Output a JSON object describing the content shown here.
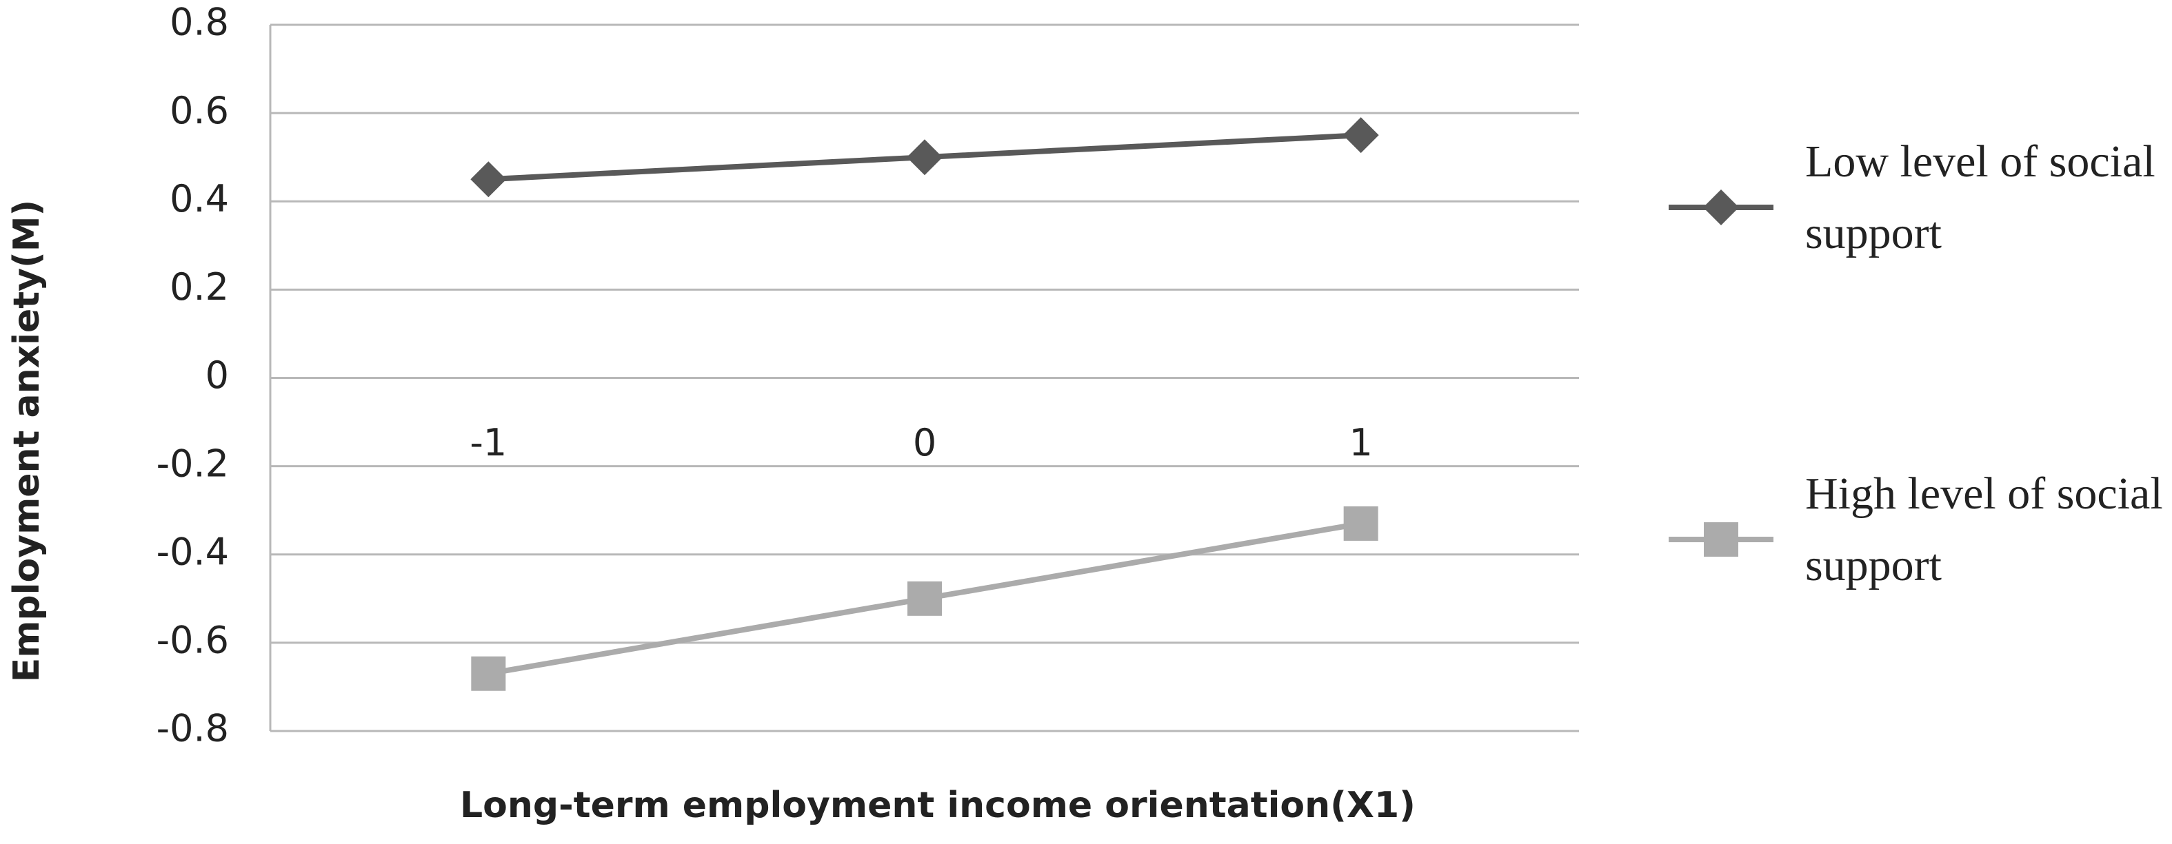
{
  "chart_data": {
    "type": "line",
    "x_label": "Long-term employment income orientation(X1)",
    "y_label": "Employment anxiety(M)",
    "categories": [
      "-1",
      "0",
      "1"
    ],
    "series": [
      {
        "name": "Low level of social support",
        "color": "#595959",
        "marker": "diamond",
        "values": [
          0.45,
          0.5,
          0.55
        ]
      },
      {
        "name": "High level of social support",
        "color": "#ababab",
        "marker": "square",
        "values": [
          -0.67,
          -0.5,
          -0.33
        ]
      }
    ],
    "ylim": [
      -0.8,
      0.8
    ],
    "yticks": [
      -0.8,
      -0.6,
      -0.4,
      -0.2,
      0,
      0.2,
      0.4,
      0.6,
      0.8
    ],
    "grid": true,
    "legend": "right"
  }
}
